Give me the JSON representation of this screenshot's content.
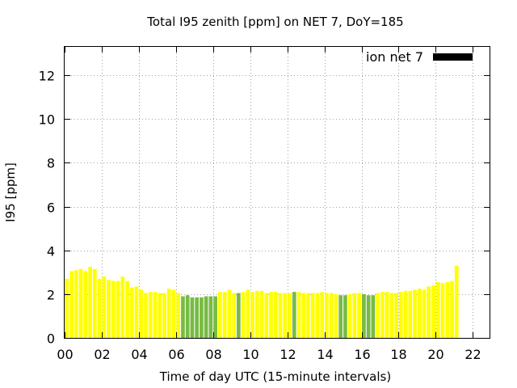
{
  "chart_data": {
    "type": "bar",
    "title": "Total I95 zenith [ppm] on NET 7, DoY=185",
    "xlabel": "Time of day UTC (15-minute intervals)",
    "ylabel": "I95 [ppm]",
    "ylim": [
      0,
      13.3
    ],
    "yticks": [
      "0",
      "2",
      "4",
      "6",
      "8",
      "10",
      "12"
    ],
    "xticks": [
      "00",
      "02",
      "04",
      "06",
      "08",
      "10",
      "12",
      "14",
      "16",
      "18",
      "20",
      "22"
    ],
    "xlim_hours": [
      0,
      22.9
    ],
    "interval_hours": 0.25,
    "grid": true,
    "legend": {
      "label": "ion net 7",
      "position": "top-right",
      "color": "#000000"
    },
    "colors": {
      "normal": "#ffff00",
      "low": "#77bb44"
    },
    "values": [
      2.7,
      3.05,
      3.1,
      3.15,
      3.05,
      3.25,
      3.15,
      2.7,
      2.8,
      2.65,
      2.6,
      2.6,
      2.8,
      2.6,
      2.3,
      2.35,
      2.2,
      2.05,
      2.1,
      2.1,
      2.05,
      2.05,
      2.25,
      2.2,
      2.05,
      1.9,
      1.95,
      1.85,
      1.85,
      1.85,
      1.9,
      1.9,
      1.9,
      2.1,
      2.1,
      2.2,
      2.05,
      2.05,
      2.1,
      2.2,
      2.1,
      2.15,
      2.15,
      2.05,
      2.1,
      2.1,
      2.05,
      2.05,
      2.05,
      2.1,
      2.1,
      2.05,
      2.05,
      2.05,
      2.05,
      2.1,
      2.05,
      2.05,
      2.0,
      1.95,
      1.95,
      2.0,
      2.05,
      2.05,
      2.0,
      1.95,
      1.95,
      2.05,
      2.1,
      2.1,
      2.05,
      2.05,
      2.1,
      2.15,
      2.15,
      2.2,
      2.25,
      2.2,
      2.35,
      2.4,
      2.55,
      2.5,
      2.55,
      2.6,
      3.3
    ],
    "low_flags": [
      0,
      0,
      0,
      0,
      0,
      0,
      0,
      0,
      0,
      0,
      0,
      0,
      0,
      0,
      0,
      0,
      0,
      0,
      0,
      0,
      0,
      0,
      0,
      0,
      0,
      1,
      1,
      1,
      1,
      1,
      1,
      1,
      1,
      0,
      0,
      0,
      0,
      1,
      0,
      0,
      0,
      0,
      0,
      0,
      0,
      0,
      0,
      0,
      0,
      1,
      0,
      0,
      0,
      0,
      0,
      0,
      0,
      0,
      0,
      1,
      1,
      0,
      0,
      0,
      1,
      1,
      1,
      0,
      0,
      0,
      0,
      0,
      0,
      0,
      0,
      0,
      0,
      0,
      0,
      0,
      0,
      0,
      0,
      0,
      0
    ]
  }
}
